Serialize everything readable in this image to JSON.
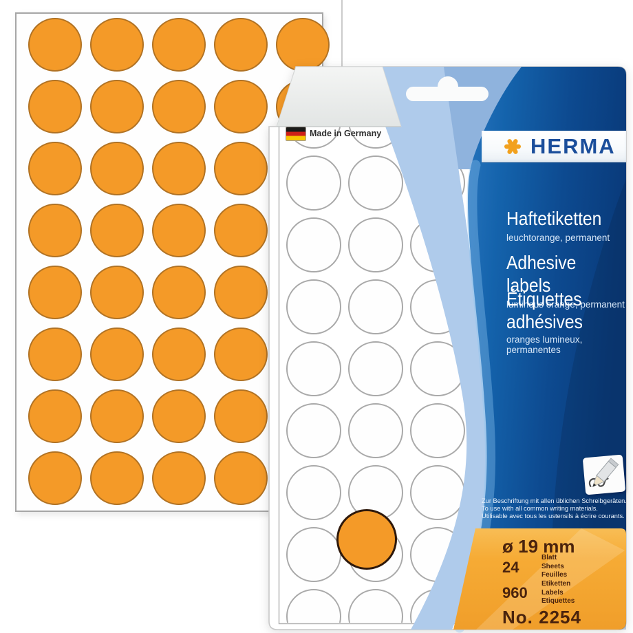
{
  "product": {
    "brand": "HERMA",
    "made_in": "Made in Germany",
    "languages": [
      {
        "title": "Haftetiketten",
        "subtitle": "leuchtorange, permanent"
      },
      {
        "title": "Adhesive labels",
        "subtitle": "luminous orange, permanent"
      },
      {
        "title": "Étiquettes adhésives",
        "subtitle": "oranges lumineux, permanentes"
      }
    ],
    "usage_notes": [
      "Zur Beschriftung mit allen üblichen Schreibgeräten.",
      "To use with all common writing materials.",
      "Utilisable avec tous les ustensils à écrire courants."
    ],
    "specs": {
      "diameter": "ø 19 mm",
      "sheet_count": "24",
      "sheet_units": [
        "Blatt",
        "Sheets",
        "Feuilles"
      ],
      "label_count": "960",
      "label_units": [
        "Etiketten",
        "Labels",
        "Etiquettes"
      ],
      "article_number": "No. 2254"
    }
  },
  "sheets": {
    "left_sheet": {
      "rows": 8,
      "cols": 5,
      "dot_color": "#F49A28",
      "dot_border": "#B07224"
    },
    "window_sheet": {
      "rows": 9,
      "cols": 4,
      "dot_color": "#FEFEFE",
      "dot_border": "#A9A9A9"
    },
    "sample_dot": {
      "color": "#F49A28",
      "border": "#2E190C"
    }
  },
  "colors": {
    "brand_blue": "#1B4E9B",
    "brand_star_orange": "#F2A11E",
    "panel_dark_blue": "#0D4A90",
    "panel_light_band": "#AFCBEB",
    "panel_orange": "#F5A930",
    "spec_text_brown": "#4A230D"
  }
}
